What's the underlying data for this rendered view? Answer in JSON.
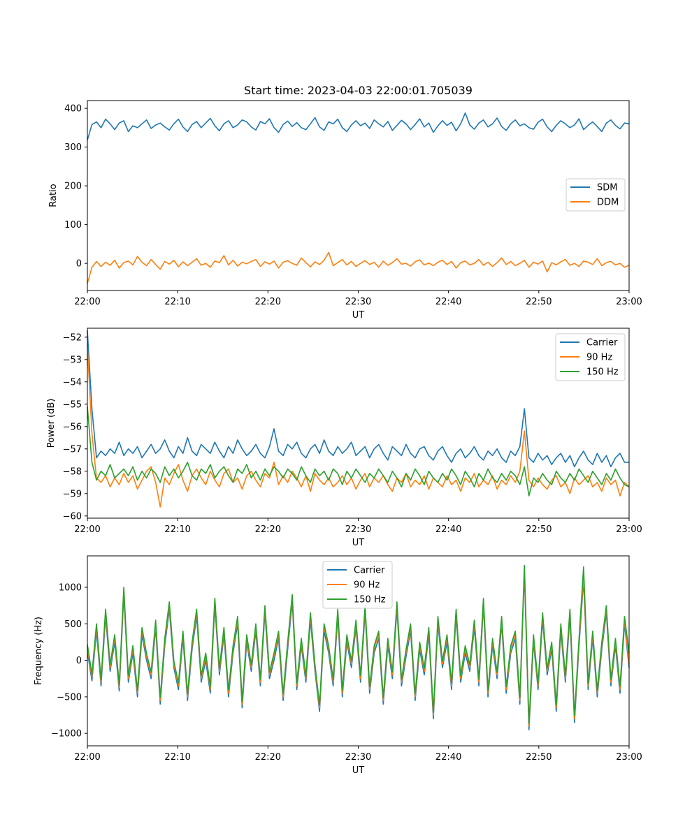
{
  "chart_data": [
    {
      "type": "line",
      "title": "Start time: 2023-04-03 22:00:01.705039",
      "xlabel": "UT",
      "ylabel": "Ratio",
      "xlim": [
        "22:00",
        "23:00"
      ],
      "x_ticks": [
        "22:00",
        "22:10",
        "22:20",
        "22:30",
        "22:40",
        "22:50",
        "23:00"
      ],
      "ylim": [
        -70,
        420
      ],
      "y_ticks": [
        0,
        100,
        200,
        300,
        400
      ],
      "grid": false,
      "legend": "center-right",
      "series": [
        {
          "name": "SDM",
          "color": "#1f77b4",
          "values": [
            318,
            358,
            365,
            350,
            372,
            360,
            345,
            362,
            368,
            340,
            355,
            350,
            360,
            370,
            348,
            357,
            362,
            352,
            344,
            360,
            372,
            352,
            340,
            358,
            366,
            350,
            362,
            374,
            355,
            342,
            360,
            368,
            350,
            357,
            370,
            365,
            352,
            344,
            366,
            360,
            373,
            350,
            338,
            358,
            367,
            353,
            363,
            350,
            345,
            360,
            376,
            352,
            343,
            365,
            360,
            372,
            350,
            340,
            357,
            368,
            355,
            362,
            348,
            370,
            360,
            352,
            366,
            343,
            356,
            369,
            360,
            345,
            358,
            373,
            352,
            362,
            338,
            355,
            368,
            356,
            364,
            342,
            360,
            388,
            357,
            346,
            362,
            370,
            352,
            360,
            375,
            353,
            343,
            360,
            370,
            355,
            360,
            350,
            346,
            364,
            372,
            352,
            340,
            356,
            368,
            360,
            350,
            357,
            373,
            345,
            356,
            365,
            353,
            340,
            362,
            370,
            356,
            347,
            362,
            360
          ]
        },
        {
          "name": "DDM",
          "color": "#ff7f0e",
          "values": [
            -52,
            -10,
            5,
            -8,
            3,
            -5,
            8,
            -12,
            2,
            6,
            -4,
            18,
            3,
            -6,
            10,
            -3,
            -15,
            5,
            -2,
            8,
            -9,
            4,
            -6,
            3,
            12,
            -5,
            0,
            -10,
            6,
            2,
            20,
            -4,
            8,
            -7,
            3,
            -1,
            5,
            10,
            -8,
            4,
            -2,
            6,
            -12,
            3,
            7,
            0,
            -5,
            14,
            2,
            -9,
            4,
            -3,
            8,
            28,
            -6,
            2,
            10,
            -4,
            5,
            -8,
            0,
            7,
            -3,
            3,
            -10,
            6,
            -5,
            2,
            12,
            -2,
            0,
            -7,
            4,
            9,
            -4,
            1,
            -6,
            3,
            8,
            -3,
            5,
            -12,
            2,
            6,
            -4,
            0,
            10,
            -5,
            3,
            -8,
            2,
            14,
            -3,
            5,
            -6,
            0,
            8,
            -10,
            3,
            -2,
            6,
            -22,
            2,
            -4,
            4,
            10,
            -5,
            0,
            -8,
            6,
            3,
            -3,
            12,
            -6,
            2,
            5,
            -4,
            0,
            -10,
            -5
          ]
        }
      ]
    },
    {
      "type": "line",
      "title": "",
      "xlabel": "UT",
      "ylabel": "Power (dB)",
      "xlim": [
        "22:00",
        "23:00"
      ],
      "x_ticks": [
        "22:00",
        "22:10",
        "22:20",
        "22:30",
        "22:40",
        "22:50",
        "23:00"
      ],
      "ylim": [
        -60.1,
        -51.6
      ],
      "y_ticks": [
        -60,
        -59,
        -58,
        -57,
        -56,
        -55,
        -54,
        -53,
        -52
      ],
      "grid": false,
      "legend": "top-right",
      "series": [
        {
          "name": "Carrier",
          "color": "#1f77b4",
          "values": [
            -51.7,
            -55.2,
            -57.4,
            -57.1,
            -57.3,
            -57.0,
            -57.2,
            -56.7,
            -57.3,
            -57.0,
            -57.2,
            -56.9,
            -57.4,
            -57.1,
            -56.8,
            -57.2,
            -57.0,
            -56.6,
            -57.1,
            -57.4,
            -56.9,
            -57.2,
            -56.5,
            -57.1,
            -57.3,
            -56.8,
            -57.0,
            -57.2,
            -56.7,
            -57.1,
            -57.4,
            -56.9,
            -57.2,
            -56.6,
            -57.0,
            -57.3,
            -57.1,
            -56.8,
            -57.2,
            -57.4,
            -56.9,
            -56.1,
            -57.1,
            -57.3,
            -56.8,
            -57.0,
            -56.7,
            -57.2,
            -57.4,
            -57.0,
            -56.8,
            -57.2,
            -56.6,
            -57.1,
            -57.3,
            -56.9,
            -57.2,
            -57.0,
            -56.7,
            -57.3,
            -57.1,
            -56.9,
            -57.4,
            -57.0,
            -56.8,
            -57.2,
            -57.5,
            -56.9,
            -57.1,
            -57.3,
            -56.8,
            -57.2,
            -57.4,
            -57.0,
            -56.9,
            -57.3,
            -57.5,
            -57.1,
            -56.9,
            -57.3,
            -57.6,
            -57.2,
            -57.0,
            -57.4,
            -57.2,
            -56.9,
            -57.3,
            -57.5,
            -57.1,
            -57.3,
            -57.0,
            -57.4,
            -57.6,
            -57.1,
            -57.3,
            -56.9,
            -55.2,
            -57.4,
            -57.6,
            -57.2,
            -57.5,
            -57.3,
            -57.7,
            -57.4,
            -57.2,
            -57.6,
            -57.3,
            -57.8,
            -57.4,
            -57.1,
            -57.5,
            -57.7,
            -57.2,
            -57.6,
            -57.3,
            -57.8,
            -57.4,
            -57.2,
            -57.6,
            -57.6
          ]
        },
        {
          "name": "90 Hz",
          "color": "#ff7f0e",
          "values": [
            -52.4,
            -56.3,
            -58.3,
            -58.5,
            -58.2,
            -58.7,
            -58.3,
            -58.6,
            -58.1,
            -58.5,
            -58.2,
            -58.8,
            -58.4,
            -58.0,
            -57.8,
            -58.5,
            -59.6,
            -58.3,
            -58.6,
            -58.1,
            -57.7,
            -58.4,
            -58.9,
            -58.2,
            -57.9,
            -58.3,
            -58.6,
            -58.0,
            -58.4,
            -58.7,
            -58.1,
            -57.9,
            -58.5,
            -58.3,
            -58.8,
            -58.2,
            -58.0,
            -58.4,
            -58.7,
            -58.1,
            -58.3,
            -57.6,
            -58.6,
            -58.2,
            -58.5,
            -58.0,
            -58.3,
            -58.7,
            -58.2,
            -58.9,
            -58.1,
            -58.4,
            -58.6,
            -58.3,
            -58.7,
            -58.5,
            -58.2,
            -58.6,
            -58.3,
            -58.8,
            -58.4,
            -58.1,
            -58.7,
            -58.3,
            -58.5,
            -58.2,
            -58.6,
            -58.9,
            -58.3,
            -58.5,
            -58.1,
            -58.7,
            -58.4,
            -58.6,
            -58.2,
            -58.8,
            -58.3,
            -58.5,
            -58.7,
            -58.2,
            -58.6,
            -58.4,
            -58.9,
            -58.3,
            -58.5,
            -58.1,
            -58.7,
            -58.4,
            -58.6,
            -58.2,
            -58.8,
            -58.4,
            -58.6,
            -58.2,
            -58.5,
            -58.0,
            -56.2,
            -58.4,
            -58.7,
            -58.3,
            -58.6,
            -58.8,
            -58.4,
            -58.2,
            -58.7,
            -58.5,
            -59.0,
            -58.3,
            -58.6,
            -58.4,
            -58.2,
            -58.7,
            -58.5,
            -58.9,
            -58.3,
            -58.6,
            -58.4,
            -59.1,
            -58.5,
            -58.7
          ]
        },
        {
          "name": "150 Hz",
          "color": "#2ca02c",
          "values": [
            -55.1,
            -57.6,
            -58.4,
            -58.0,
            -58.2,
            -57.7,
            -58.3,
            -58.1,
            -57.9,
            -58.2,
            -57.8,
            -58.4,
            -58.0,
            -58.3,
            -57.9,
            -58.1,
            -58.5,
            -57.8,
            -58.2,
            -57.9,
            -58.3,
            -58.0,
            -57.6,
            -58.2,
            -58.4,
            -57.9,
            -58.1,
            -57.7,
            -58.3,
            -58.0,
            -57.8,
            -58.2,
            -58.5,
            -57.9,
            -58.1,
            -57.7,
            -58.3,
            -58.0,
            -58.4,
            -57.9,
            -58.2,
            -57.8,
            -58.0,
            -58.3,
            -57.9,
            -58.1,
            -58.4,
            -57.8,
            -58.2,
            -58.5,
            -57.9,
            -58.2,
            -58.0,
            -58.4,
            -57.9,
            -58.1,
            -58.6,
            -58.0,
            -58.3,
            -57.9,
            -58.2,
            -58.5,
            -58.1,
            -58.3,
            -57.9,
            -58.2,
            -58.5,
            -58.0,
            -58.3,
            -58.7,
            -58.1,
            -58.4,
            -57.9,
            -58.2,
            -58.6,
            -58.0,
            -58.3,
            -58.5,
            -58.1,
            -58.4,
            -57.9,
            -58.2,
            -58.6,
            -58.0,
            -58.3,
            -58.7,
            -58.1,
            -58.4,
            -57.9,
            -58.3,
            -58.5,
            -58.1,
            -58.4,
            -58.0,
            -58.2,
            -58.6,
            -57.8,
            -59.1,
            -58.3,
            -58.5,
            -58.1,
            -58.4,
            -58.6,
            -58.0,
            -58.3,
            -58.5,
            -58.1,
            -58.4,
            -57.9,
            -58.2,
            -58.5,
            -58.0,
            -58.3,
            -58.6,
            -58.1,
            -58.4,
            -57.9,
            -58.3,
            -58.6,
            -58.7
          ]
        }
      ]
    },
    {
      "type": "line",
      "title": "",
      "xlabel": "UT",
      "ylabel": "Frequency (Hz)",
      "xlim": [
        "22:00",
        "23:00"
      ],
      "x_ticks": [
        "22:00",
        "22:10",
        "22:20",
        "22:30",
        "22:40",
        "22:50",
        "23:00"
      ],
      "ylim": [
        -1170,
        1430
      ],
      "y_ticks": [
        -1000,
        -500,
        0,
        500,
        1000
      ],
      "grid": false,
      "legend": "top-center",
      "series": [
        {
          "name": "Carrier",
          "color": "#1f77b4",
          "values": [
            120,
            -280,
            400,
            -350,
            600,
            -150,
            250,
            -420,
            900,
            -300,
            100,
            -500,
            350,
            0,
            -250,
            450,
            -600,
            200,
            700,
            -100,
            -400,
            300,
            -550,
            150,
            600,
            -300,
            0,
            -450,
            750,
            -200,
            350,
            -500,
            100,
            500,
            -650,
            250,
            -150,
            400,
            -350,
            650,
            -250,
            0,
            300,
            -550,
            150,
            800,
            -400,
            200,
            -300,
            550,
            -150,
            -700,
            400,
            100,
            -350,
            600,
            -500,
            250,
            -100,
            450,
            -300,
            650,
            -450,
            100,
            300,
            -600,
            200,
            -250,
            700,
            -350,
            50,
            400,
            -550,
            150,
            -200,
            350,
            -800,
            500,
            -100,
            250,
            -400,
            600,
            -300,
            100,
            -150,
            450,
            -350,
            750,
            -500,
            200,
            -250,
            500,
            -450,
            100,
            300,
            -600,
            1200,
            -950,
            250,
            -400,
            550,
            -200,
            150,
            -700,
            400,
            -300,
            600,
            -850,
            200,
            1100,
            -400,
            300,
            -500,
            150,
            650,
            -350,
            200,
            -450,
            500,
            -100
          ]
        },
        {
          "name": "90 Hz",
          "color": "#ff7f0e",
          "values": [
            180,
            -230,
            460,
            -300,
            660,
            -100,
            310,
            -370,
            960,
            -250,
            160,
            -450,
            410,
            50,
            -200,
            510,
            -550,
            260,
            760,
            -50,
            -350,
            360,
            -500,
            210,
            660,
            -250,
            60,
            -400,
            810,
            -150,
            410,
            -450,
            160,
            560,
            -600,
            310,
            -100,
            460,
            -300,
            710,
            -200,
            60,
            360,
            -500,
            210,
            860,
            -350,
            260,
            -250,
            610,
            -100,
            -650,
            460,
            160,
            -300,
            660,
            -450,
            310,
            -50,
            510,
            -250,
            710,
            -400,
            160,
            360,
            -550,
            260,
            -200,
            760,
            -300,
            110,
            460,
            -500,
            210,
            -150,
            410,
            -750,
            560,
            -50,
            310,
            -350,
            660,
            -250,
            160,
            -100,
            510,
            -300,
            810,
            -450,
            260,
            -200,
            560,
            -400,
            160,
            360,
            -550,
            1260,
            -900,
            310,
            -350,
            610,
            -150,
            210,
            -650,
            460,
            -250,
            660,
            -800,
            260,
            1160,
            -350,
            360,
            -450,
            210,
            710,
            -300,
            260,
            -400,
            560,
            -50
          ]
        },
        {
          "name": "150 Hz",
          "color": "#2ca02c",
          "values": [
            220,
            -190,
            500,
            -260,
            700,
            -60,
            350,
            -330,
            1000,
            -210,
            200,
            -410,
            450,
            90,
            -160,
            550,
            -510,
            300,
            800,
            -10,
            -310,
            400,
            -460,
            250,
            700,
            -210,
            100,
            -360,
            850,
            -110,
            450,
            -410,
            200,
            600,
            -560,
            350,
            -60,
            500,
            -260,
            750,
            -160,
            100,
            400,
            -460,
            250,
            900,
            -310,
            300,
            -210,
            650,
            -60,
            -610,
            500,
            200,
            -260,
            700,
            -410,
            350,
            -10,
            550,
            -210,
            750,
            -360,
            200,
            400,
            -510,
            300,
            -160,
            800,
            -260,
            150,
            500,
            -460,
            250,
            -110,
            450,
            -710,
            600,
            -10,
            350,
            -310,
            700,
            -210,
            200,
            -60,
            550,
            -260,
            850,
            -410,
            300,
            -160,
            600,
            -360,
            200,
            400,
            -510,
            1300,
            -860,
            350,
            -310,
            650,
            -110,
            250,
            -610,
            500,
            -210,
            700,
            -760,
            300,
            1280,
            -310,
            400,
            -410,
            250,
            750,
            -260,
            300,
            -360,
            600,
            100
          ]
        }
      ]
    }
  ]
}
